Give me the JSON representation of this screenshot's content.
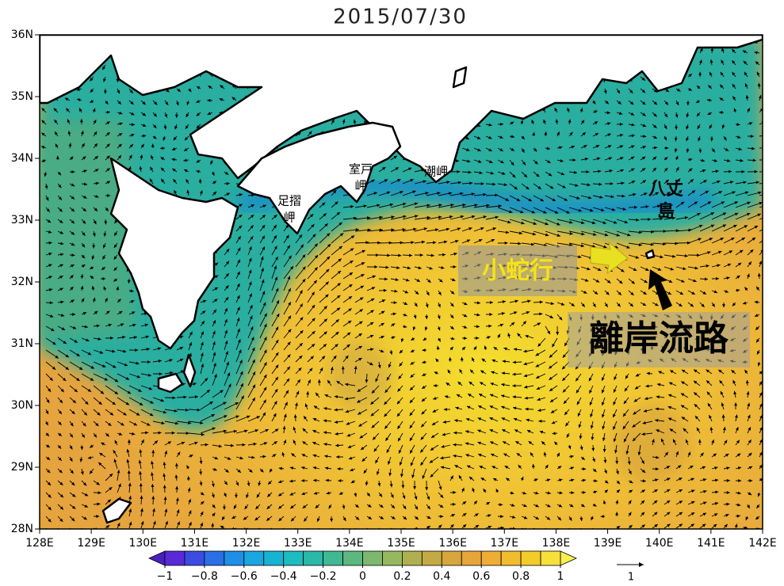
{
  "map": {
    "title": "2015/07/30",
    "lonlim": [
      128,
      142
    ],
    "latlim": [
      28,
      36
    ],
    "lon_ticks": [
      {
        "value": 128,
        "label": "128E"
      },
      {
        "value": 129,
        "label": "129E"
      },
      {
        "value": 130,
        "label": "130E"
      },
      {
        "value": 131,
        "label": "131E"
      },
      {
        "value": 132,
        "label": "132E"
      },
      {
        "value": 133,
        "label": "133E"
      },
      {
        "value": 134,
        "label": "134E"
      },
      {
        "value": 135,
        "label": "135E"
      },
      {
        "value": 136,
        "label": "136E"
      },
      {
        "value": 137,
        "label": "137E"
      },
      {
        "value": 138,
        "label": "138E"
      },
      {
        "value": 139,
        "label": "139E"
      },
      {
        "value": 140,
        "label": "140E"
      },
      {
        "value": 141,
        "label": "141E"
      },
      {
        "value": 142,
        "label": "142E"
      }
    ],
    "lat_ticks": [
      {
        "value": 28,
        "label": "28N"
      },
      {
        "value": 29,
        "label": "29N"
      },
      {
        "value": 30,
        "label": "30N"
      },
      {
        "value": 31,
        "label": "31N"
      },
      {
        "value": 32,
        "label": "32N"
      },
      {
        "value": 33,
        "label": "33N"
      },
      {
        "value": 34,
        "label": "34N"
      },
      {
        "value": 35,
        "label": "35N"
      },
      {
        "value": 36,
        "label": "36N"
      }
    ],
    "places": [
      {
        "lines": [
          "足摺",
          "岬"
        ]
      },
      {
        "lines": [
          "室戸",
          "岬"
        ]
      },
      {
        "lines": [
          "潮岬"
        ]
      },
      {
        "lines": [
          "八丈",
          "島"
        ]
      }
    ],
    "annotations": [
      "小蛇行",
      "離岸流路"
    ],
    "colorbar": {
      "lim": [
        -1,
        1
      ],
      "ticks": [
        {
          "value": -1,
          "label": "−1"
        },
        {
          "value": -0.8,
          "label": "−0.8"
        },
        {
          "value": -0.6,
          "label": "−0.6"
        },
        {
          "value": -0.4,
          "label": "−0.4"
        },
        {
          "value": -0.2,
          "label": "−0.2"
        },
        0,
        0.2,
        0.4,
        0.6,
        0.8,
        1
      ],
      "colors": [
        "#5a2ad8",
        "#3c4be0",
        "#2a6fe6",
        "#1f8ee6",
        "#1aa6e0",
        "#16b4d2",
        "#1cbcc0",
        "#2ab8a8",
        "#40b892",
        "#5cb880",
        "#7cb870",
        "#98b860",
        "#b0b050",
        "#c4aa44",
        "#d8a63c",
        "#e6a63a",
        "#eeae36",
        "#f2bc30",
        "#f4cc2a",
        "#f6e03a"
      ],
      "lower_color": "#4a20c0",
      "upper_color": "#f8f050"
    },
    "vector_reference": "1"
  }
}
